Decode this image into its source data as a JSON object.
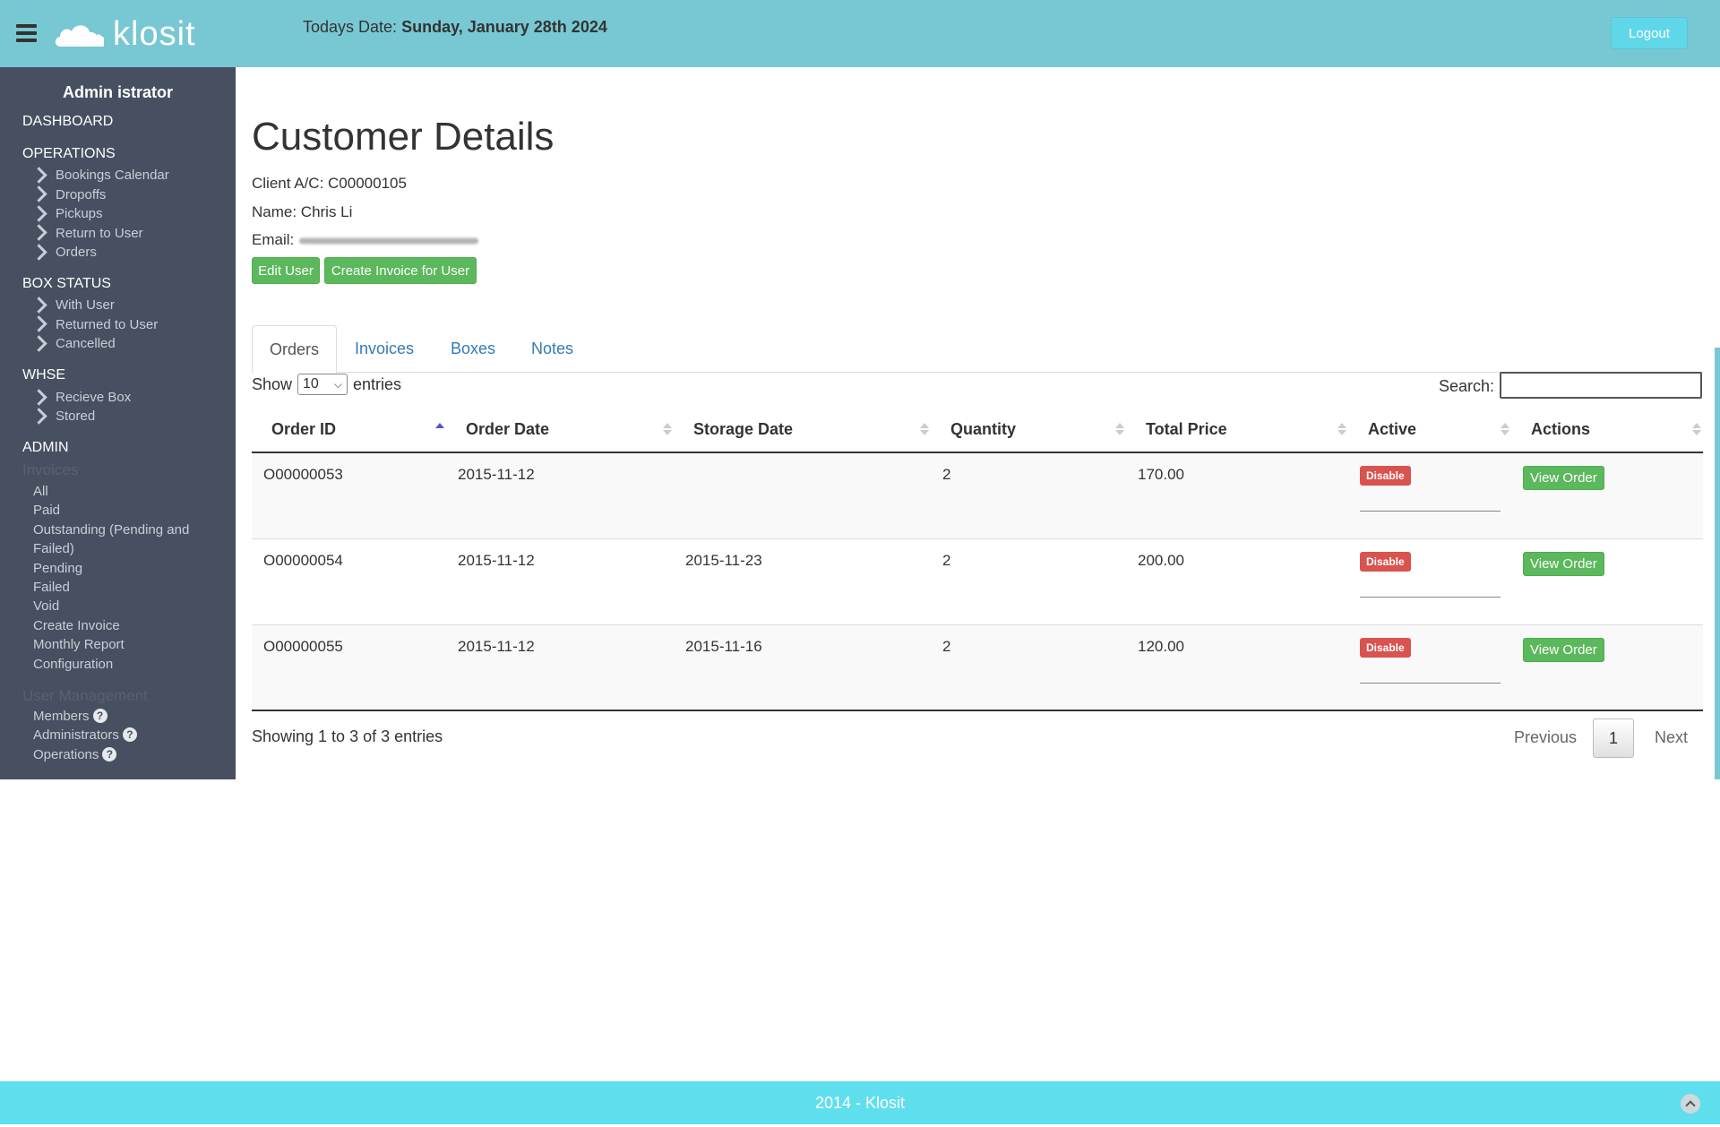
{
  "header": {
    "logo_text": "klosit",
    "today_label": "Todays Date:",
    "today_value": "Sunday, January 28th 2024",
    "logout_label": "Logout",
    "color": "#78c8d4"
  },
  "sidebar": {
    "user": "Admin istrator",
    "dashboard": "DASHBOARD",
    "operations": {
      "title": "OPERATIONS",
      "items": [
        "Bookings Calendar",
        "Dropoffs",
        "Pickups",
        "Return to User",
        "Orders"
      ]
    },
    "box_status": {
      "title": "BOX STATUS",
      "items": [
        "With User",
        "Returned to User",
        "Cancelled"
      ]
    },
    "whse": {
      "title": "WHSE",
      "items": [
        "Recieve Box",
        "Stored"
      ]
    },
    "admin": {
      "title": "ADMIN",
      "invoices_title": "Invoices",
      "invoice_items": [
        "All",
        "Paid",
        "Outstanding (Pending and",
        "Failed)",
        "Pending",
        "Failed",
        "Void",
        "Create Invoice",
        "Monthly Report",
        "Configuration"
      ],
      "user_mgmt_title": "User Management",
      "user_items": [
        "Members",
        "Administrators",
        "Operations"
      ]
    }
  },
  "main": {
    "title": "Customer Details",
    "client_ac": "Client A/C: C00000105",
    "name": "Name: Chris Li",
    "email_label": "Email:",
    "edit_user": "Edit User",
    "create_invoice": "Create Invoice for User",
    "tabs": [
      "Orders",
      "Invoices",
      "Boxes",
      "Notes"
    ],
    "show": "Show",
    "entries_value": "10",
    "entries": "entries",
    "search_label": "Search:",
    "columns": [
      "Order ID",
      "Order Date",
      "Storage Date",
      "Quantity",
      "Total Price",
      "Active",
      "Actions"
    ],
    "rows": [
      {
        "id": "O00000053",
        "order_date": "2015-11-12",
        "storage_date": "",
        "qty": "2",
        "price": "170.00",
        "active": "Disable",
        "action": "View Order"
      },
      {
        "id": "O00000054",
        "order_date": "2015-11-12",
        "storage_date": "2015-11-23",
        "qty": "2",
        "price": "200.00",
        "active": "Disable",
        "action": "View Order"
      },
      {
        "id": "O00000055",
        "order_date": "2015-11-12",
        "storage_date": "2015-11-16",
        "qty": "2",
        "price": "120.00",
        "active": "Disable",
        "action": "View Order"
      }
    ],
    "showing": "Showing 1 to 3 of 3 entries",
    "pagination": {
      "previous": "Previous",
      "page": "1",
      "next": "Next"
    }
  },
  "footer": {
    "text": "2014 - Klosit"
  }
}
